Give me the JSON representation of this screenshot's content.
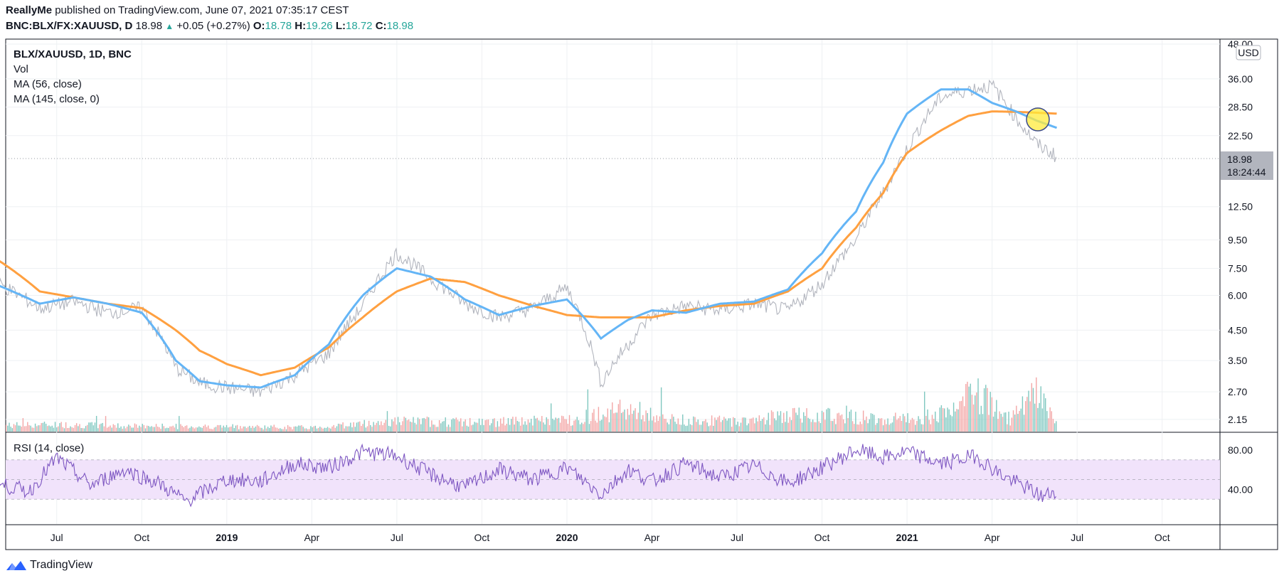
{
  "header": {
    "author": "ReallyMe",
    "published": "published on TradingView.com, June 07, 2021 07:35:17 CEST",
    "symbol": "BNC:BLX/FX:XAUUSD, D",
    "last": "18.98",
    "change": "+0.05 (+0.27%)",
    "o_label": "O:",
    "o": "18.78",
    "h_label": "H:",
    "h": "19.26",
    "l_label": "L:",
    "l": "18.72",
    "c_label": "C:",
    "c": "18.98"
  },
  "legend": {
    "title": "BLX/XAUUSD, 1D, BNC",
    "vol": "Vol",
    "ma56": "MA (56, close)",
    "ma145": "MA (145, close, 0)"
  },
  "currency": "USD",
  "price_badge": {
    "price": "18.98",
    "countdown": "18:24:44"
  },
  "rsi_label": "RSI (14, close)",
  "footer": {
    "brand": "TradingView"
  },
  "colors": {
    "price": "#b2b5be",
    "ma56": "#64b5f6",
    "ma145": "#ffa040",
    "rsi": "#7e57c2",
    "rsi_band": "#f1e3fb",
    "vol_up": "#80c8c0",
    "vol_down": "#f3a6a6",
    "highlight": "#ffeb3b",
    "grid": "#eef0f3"
  },
  "chart_data": [
    {
      "type": "line",
      "name": "price-pane",
      "scale": "log",
      "y_ticks": [
        2.15,
        2.7,
        3.5,
        4.5,
        6.0,
        7.5,
        9.5,
        12.5,
        18.98,
        22.5,
        28.5,
        36.0,
        48.0
      ],
      "y_tick_labels": [
        "2.15",
        "2.70",
        "3.50",
        "4.50",
        "6.00",
        "7.50",
        "9.50",
        "12.50",
        "18.98",
        "22.50",
        "28.50",
        "36.00",
        "48.00"
      ],
      "x_ticks": [
        "Jul",
        "Oct",
        "2019",
        "Apr",
        "Jul",
        "Oct",
        "2020",
        "Apr",
        "Jul",
        "Oct",
        "2021",
        "Apr",
        "Jul",
        "Oct"
      ],
      "x_tick_years": [
        "2019",
        "2020",
        "2021"
      ],
      "x": [
        2018.33,
        2018.45,
        2018.55,
        2018.65,
        2018.75,
        2018.85,
        2018.92,
        2019.0,
        2019.1,
        2019.2,
        2019.3,
        2019.4,
        2019.5,
        2019.6,
        2019.7,
        2019.8,
        2019.9,
        2020.0,
        2020.1,
        2020.18,
        2020.25,
        2020.35,
        2020.45,
        2020.55,
        2020.65,
        2020.75,
        2020.85,
        2020.93,
        2021.0,
        2021.1,
        2021.18,
        2021.25,
        2021.32,
        2021.38,
        2021.44
      ],
      "series": [
        {
          "name": "BLX/XAUUSD",
          "values": [
            6.6,
            5.4,
            5.7,
            5.2,
            5.4,
            3.3,
            2.9,
            2.8,
            2.7,
            3.1,
            3.7,
            5.5,
            8.5,
            6.9,
            5.6,
            5.0,
            5.4,
            6.4,
            2.9,
            4.0,
            5.1,
            5.5,
            5.3,
            5.6,
            5.3,
            6.6,
            9.5,
            14.0,
            20.0,
            31.0,
            33.0,
            34.0,
            26.0,
            21.0,
            18.98
          ]
        },
        {
          "name": "MA (56, close)",
          "values": [
            6.5,
            5.6,
            5.9,
            5.6,
            5.2,
            3.5,
            2.95,
            2.85,
            2.8,
            3.1,
            4.0,
            6.0,
            7.5,
            7.0,
            5.8,
            5.1,
            5.5,
            5.8,
            4.2,
            4.9,
            5.3,
            5.2,
            5.6,
            5.7,
            6.3,
            8.5,
            12.0,
            18.0,
            27.0,
            33.0,
            33.0,
            29.5,
            27.5,
            25.5,
            24.0
          ]
        },
        {
          "name": "MA (145, close, 0)",
          "values": [
            8.0,
            6.2,
            5.9,
            5.6,
            5.4,
            4.5,
            3.8,
            3.4,
            3.1,
            3.3,
            3.9,
            5.0,
            6.2,
            6.9,
            6.7,
            6.0,
            5.5,
            5.1,
            5.0,
            5.0,
            5.0,
            5.3,
            5.5,
            5.6,
            6.2,
            7.5,
            10.5,
            14.0,
            19.5,
            23.5,
            26.5,
            27.5,
            27.4,
            27.2,
            27.0
          ]
        }
      ]
    },
    {
      "type": "bar",
      "name": "volume",
      "note": "relative volume, 0-1",
      "x": [
        2018.33,
        2018.5,
        2018.75,
        2019.0,
        2019.25,
        2019.5,
        2019.75,
        2020.0,
        2020.18,
        2020.3,
        2020.5,
        2020.7,
        2020.85,
        2021.0,
        2021.12,
        2021.2,
        2021.3,
        2021.38,
        2021.44
      ],
      "values": [
        0.15,
        0.17,
        0.13,
        0.12,
        0.1,
        0.25,
        0.22,
        0.28,
        0.55,
        0.28,
        0.25,
        0.42,
        0.35,
        0.3,
        0.45,
        0.95,
        0.3,
        0.88,
        0.2
      ]
    },
    {
      "type": "line",
      "name": "RSI (14, close)",
      "y_ticks": [
        40,
        80
      ],
      "y_tick_labels": [
        "40.00",
        "80.00"
      ],
      "band": [
        30,
        70
      ],
      "x": [
        2018.33,
        2018.42,
        2018.5,
        2018.6,
        2018.7,
        2018.8,
        2018.88,
        2019.0,
        2019.1,
        2019.2,
        2019.3,
        2019.4,
        2019.5,
        2019.6,
        2019.7,
        2019.8,
        2019.9,
        2020.0,
        2020.1,
        2020.18,
        2020.25,
        2020.35,
        2020.45,
        2020.55,
        2020.65,
        2020.75,
        2020.85,
        2020.93,
        2021.0,
        2021.1,
        2021.2,
        2021.28,
        2021.36,
        2021.4,
        2021.44
      ],
      "values": [
        45,
        38,
        72,
        44,
        60,
        46,
        28,
        50,
        48,
        66,
        62,
        78,
        74,
        55,
        42,
        60,
        50,
        62,
        35,
        60,
        48,
        66,
        52,
        64,
        46,
        62,
        80,
        72,
        78,
        66,
        74,
        54,
        40,
        32,
        40
      ]
    }
  ]
}
